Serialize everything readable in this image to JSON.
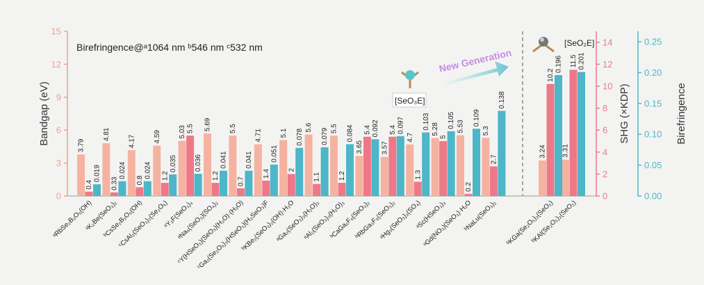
{
  "chart_data": {
    "type": "bar",
    "title": "Birefringence@ᵃ1064 nm ᵇ546 nm ᶜ532 nm",
    "ylabel": "Bandgap (eV)",
    "y2label": "SHG (×KDP)",
    "y3label": "Birefringence",
    "annotations": [
      "New Generation",
      "[SeO₃E]",
      "[SeO₂E]"
    ],
    "categories": [
      "ᵃRbSe₂B₂O₅(OH)",
      "ᵃK₂Be(SeO₃)₂",
      "ᵇCsSe₂B₂O₅(OH)",
      "ᶜCsAl₂(SeO₃)₂(Se₂O₅)",
      "ᵃY₃F(SeO₃)₄",
      "ᵃNa₆(SeO₃)(SO₄)₂",
      "ᶜY(HSeO₃)(SeO₃)(H₂O)·(H₂O)",
      "ᶜGa₂(Se₂O₅)₃(HSeO₃)(H₂SeO₃)F",
      "ᵇKBe₂(SeO₃)₂(OH)·H₂O",
      "ᵃGa₂(SeO₃)₃(H₂O)₃",
      "ᵃAl₂(SeO₃)₃(H₂O)₃",
      "ᵇCaGa₂F₆(SeO₃)₂",
      "ᵇRbGa₃F₆(SeO₃)₂",
      "ᵃHg₃(SeO₃)₂(SO₄)",
      "ᵃSc(HSeO₃)₃",
      "ᵃGd(NO₃)(SeO₃)·H₂O",
      "ᵇNaLu(SeO₃)₂",
      "ᵇKGa(Se₂O₅)₂(SeO₂)",
      "ᵇKAl(Se₂O₅)₂(SeO₂)"
    ],
    "series": [
      {
        "name": "Bandgap",
        "color": "#f6b2a0",
        "axis": "y",
        "values": [
          3.79,
          4.81,
          4.17,
          4.59,
          5.03,
          5.69,
          5.5,
          4.71,
          5.1,
          5.6,
          5.5,
          3.65,
          3.57,
          4.7,
          5.28,
          5.53,
          5.3,
          3.24,
          3.31
        ]
      },
      {
        "name": "SHG",
        "color": "#ee7888",
        "axis": "y2",
        "values": [
          0.4,
          0.33,
          0.8,
          1.2,
          5.5,
          1.2,
          0.7,
          1.4,
          2,
          1.1,
          1.2,
          5.4,
          5.4,
          1.3,
          5,
          0.2,
          2.7,
          10.2,
          11.5
        ]
      },
      {
        "name": "Birefringence",
        "color": "#4db6c8",
        "axis": "y3",
        "values": [
          0.019,
          0.024,
          0.024,
          0.035,
          0.036,
          0.041,
          0.041,
          0.051,
          0.078,
          0.079,
          0.084,
          0.092,
          0.097,
          0.103,
          0.105,
          0.109,
          0.138,
          0.196,
          0.201
        ]
      }
    ],
    "ylim": [
      0,
      15
    ],
    "yticks": [
      0,
      3,
      6,
      9,
      12,
      15
    ],
    "ycolor": "#f0a090",
    "y2lim": [
      0,
      15
    ],
    "y2ticks": [
      0,
      2,
      4,
      6,
      8,
      10,
      12,
      14
    ],
    "y2color": "#ee7888",
    "y3lim": [
      0,
      0.267
    ],
    "y3ticks": [
      {
        "value": 0,
        "label": "0.00"
      },
      {
        "value": 0.05,
        "label": "0.05"
      },
      {
        "value": 0.1,
        "label": "0.10"
      },
      {
        "value": 0.15,
        "label": "0.15"
      },
      {
        "value": 0.2,
        "label": "0.20"
      },
      {
        "value": 0.25,
        "label": "0.25"
      }
    ],
    "y3color": "#4db6c8"
  }
}
